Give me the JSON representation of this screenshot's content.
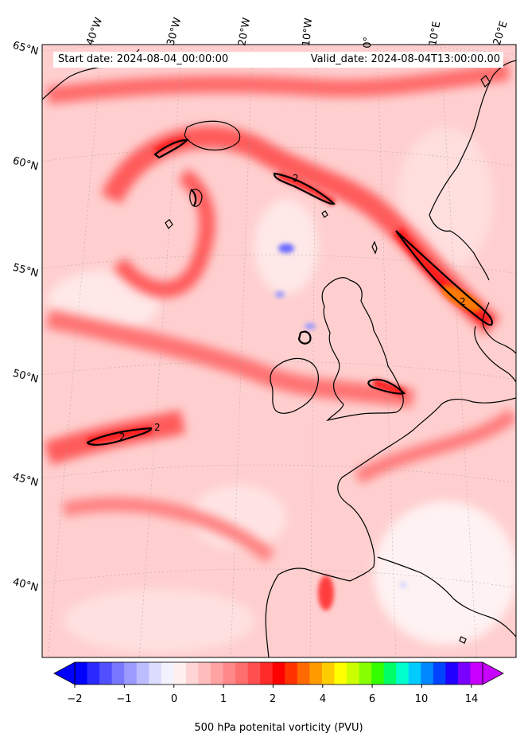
{
  "header": {
    "start_date": "Start date: 2024-08-04_00:00:00",
    "valid_date": "Valid_date: 2024-08-04T13:00:00.00"
  },
  "longitude_labels": [
    "40°W",
    "30°W",
    "20°W",
    "10°W",
    "0°",
    "10°E",
    "20°E"
  ],
  "latitude_labels": [
    "65°N",
    "60°N",
    "55°N",
    "50°N",
    "45°N",
    "40°N"
  ],
  "field": {
    "variable": "500 hPa potential vorticity",
    "contour_level": "2",
    "contour_labels": [
      "2",
      "2",
      "2",
      "2"
    ]
  },
  "colorbar": {
    "title": "500 hPa potenital vorticity (PVU)",
    "tick_labels": [
      "−2",
      "−1",
      "0",
      "1",
      "2",
      "4",
      "6",
      "10",
      "14"
    ],
    "colors": [
      "#0000ff",
      "#2929ff",
      "#5050ff",
      "#7878ff",
      "#9a9aff",
      "#bcbcff",
      "#dcdcff",
      "#f2f2ff",
      "#fff0f0",
      "#ffd5d5",
      "#ffbcbc",
      "#ffa2a2",
      "#ff8888",
      "#ff6e6e",
      "#ff4f4f",
      "#ff2a2a",
      "#ff0000",
      "#ff3300",
      "#ff6a00",
      "#ff9a00",
      "#ffcc00",
      "#ffff00",
      "#ccff00",
      "#88ff00",
      "#33ff00",
      "#00ff66",
      "#00ffcc",
      "#00ccff",
      "#0088ff",
      "#0044ff",
      "#2000ff",
      "#7a00ff",
      "#c800ff"
    ]
  },
  "colors": {
    "background_field": "#ffcfcf",
    "strong_field": "#ff5656",
    "contour": "#000000",
    "coastline": "#000000"
  }
}
